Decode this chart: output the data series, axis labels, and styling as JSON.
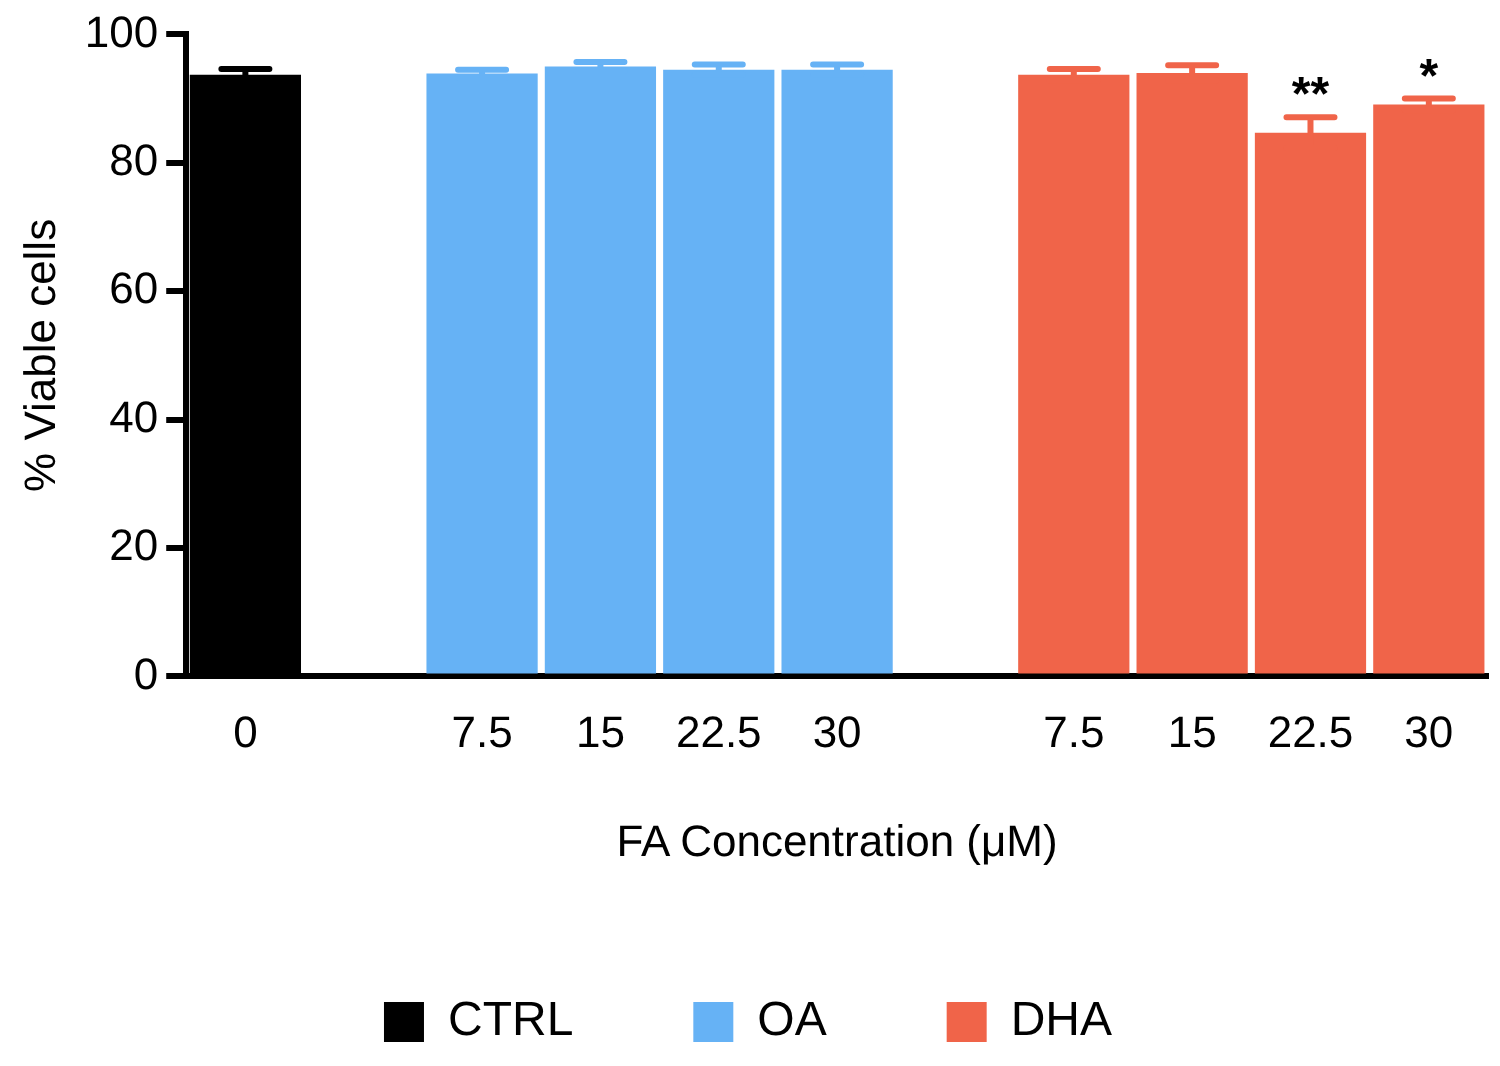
{
  "chart_data": {
    "type": "bar",
    "xlabel": "FA Concentration (μM)",
    "ylabel": "% Viable cells",
    "categories": [
      "0",
      null,
      "7.5",
      "15",
      "22.5",
      "30",
      null,
      "7.5",
      "15",
      "22.5",
      "30"
    ],
    "series": [
      {
        "name": "CTRL",
        "color": "#000000",
        "values": [
          93.7,
          null,
          null,
          null,
          null,
          null,
          null,
          null,
          null,
          null,
          null
        ],
        "errors": [
          0.9,
          null,
          null,
          null,
          null,
          null,
          null,
          null,
          null,
          null,
          null
        ]
      },
      {
        "name": "OA",
        "color": "#66b2f5",
        "values": [
          null,
          null,
          93.9,
          95.0,
          94.5,
          94.5,
          null,
          null,
          null,
          null,
          null
        ],
        "errors": [
          null,
          null,
          0.6,
          0.7,
          0.8,
          0.8,
          null,
          null,
          null,
          null,
          null
        ]
      },
      {
        "name": "DHA",
        "color": "#f06449",
        "values": [
          null,
          null,
          null,
          null,
          null,
          null,
          null,
          93.7,
          94.0,
          84.7,
          89.1
        ],
        "value_labels": [
          null,
          null,
          null,
          null,
          null,
          null,
          null,
          null,
          null,
          "**",
          "*"
        ],
        "errors": [
          null,
          null,
          null,
          null,
          null,
          null,
          null,
          0.9,
          1.2,
          2.4,
          0.9
        ]
      }
    ],
    "ylim": [
      0,
      100
    ],
    "yticks": [
      0,
      20,
      40,
      60,
      80,
      100
    ],
    "grid": false,
    "legend": "bottom"
  }
}
